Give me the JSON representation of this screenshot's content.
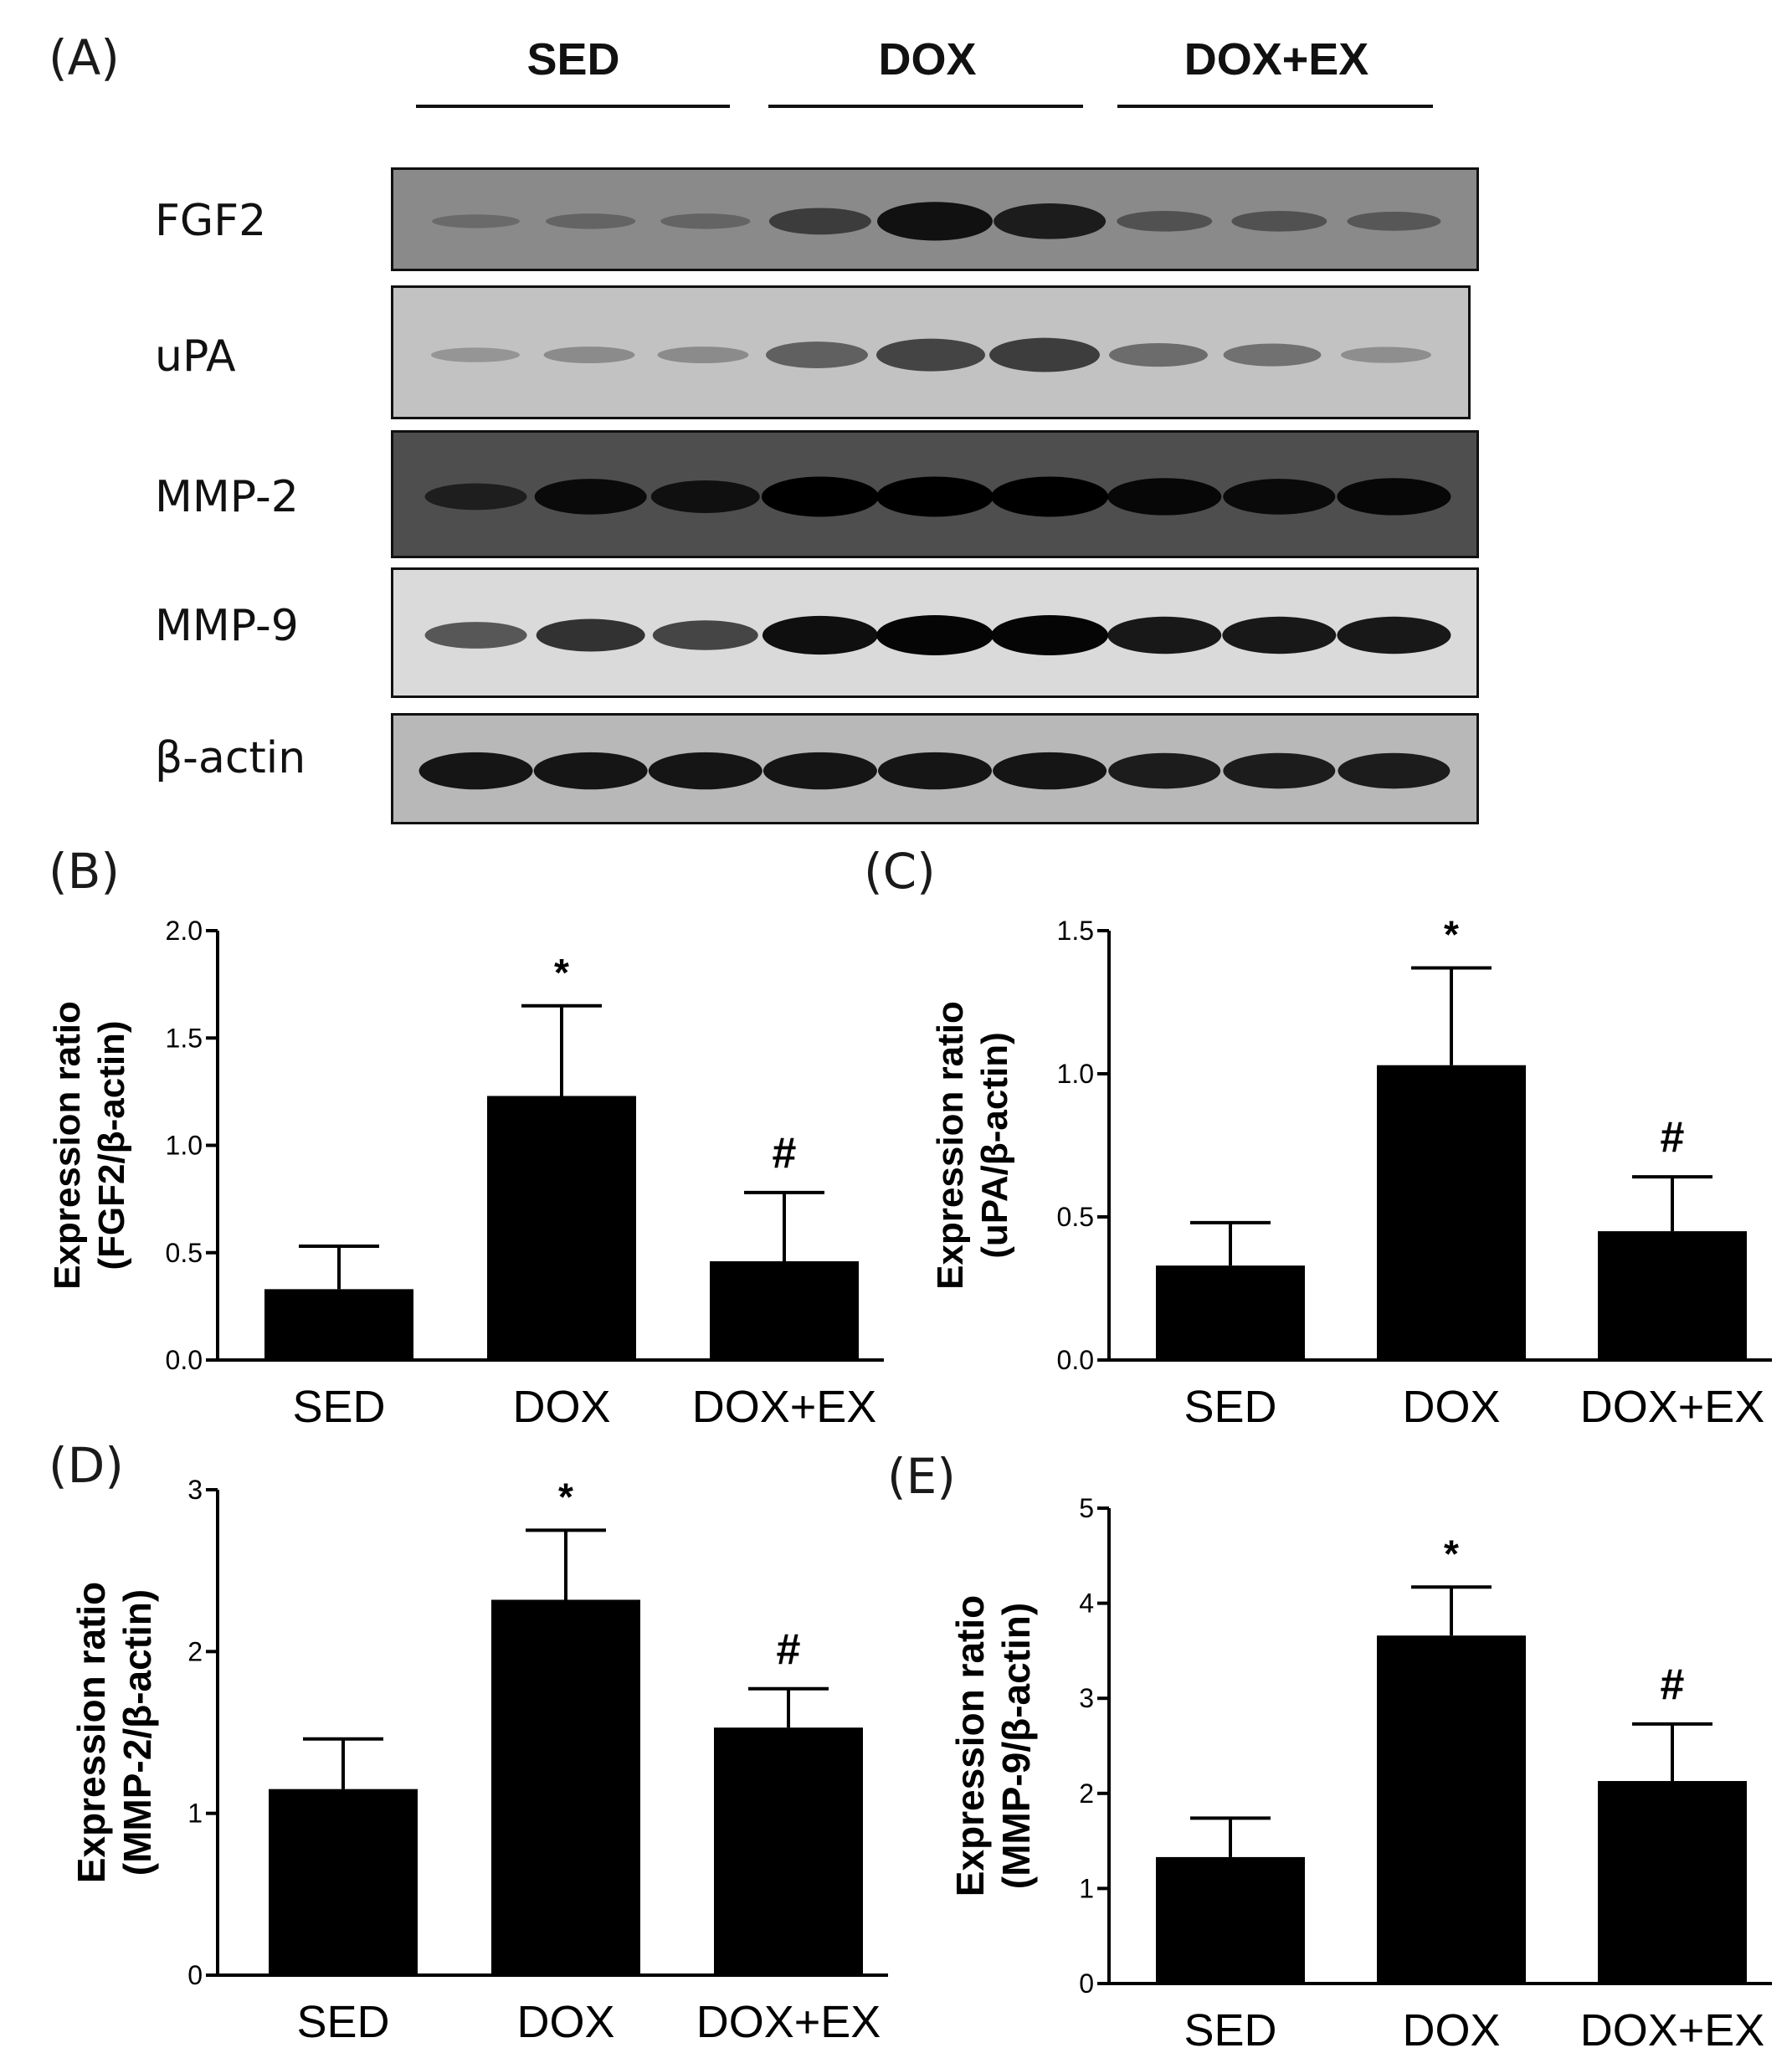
{
  "panel_a": {
    "letter": "(A)",
    "groups": [
      "SED",
      "DOX",
      "DOX+EX"
    ],
    "blots": [
      {
        "label": "FGF2",
        "bg": "#8a8a8a",
        "band_color": "#0c0c0c",
        "intensity": [
          0.12,
          0.18,
          0.18,
          0.55,
          0.95,
          0.85,
          0.35,
          0.35,
          0.3
        ]
      },
      {
        "label": "uPA",
        "bg": "#c2c2c2",
        "band_color": "#222222",
        "intensity": [
          0.15,
          0.22,
          0.22,
          0.55,
          0.75,
          0.8,
          0.45,
          0.42,
          0.2
        ]
      },
      {
        "label": "MMP-2",
        "bg": "#4e4e4e",
        "band_color": "#000000",
        "intensity": [
          0.55,
          0.85,
          0.75,
          1.0,
          1.0,
          1.0,
          0.9,
          0.85,
          0.9
        ]
      },
      {
        "label": "MMP-9",
        "bg": "#dadada",
        "band_color": "#050505",
        "intensity": [
          0.55,
          0.75,
          0.65,
          0.95,
          1.0,
          1.0,
          0.9,
          0.9,
          0.9
        ]
      },
      {
        "label": "β-actin",
        "bg": "#b8b8b8",
        "band_color": "#050505",
        "intensity": [
          0.9,
          0.9,
          0.9,
          0.9,
          0.9,
          0.9,
          0.85,
          0.85,
          0.85
        ]
      }
    ]
  },
  "chart_data": [
    {
      "panel": "(B)",
      "type": "bar",
      "categories": [
        "SED",
        "DOX",
        "DOX+EX"
      ],
      "values": [
        0.33,
        1.23,
        0.46
      ],
      "errors": [
        0.2,
        0.42,
        0.32
      ],
      "annotations": [
        "",
        "*",
        "#"
      ],
      "ylabel_line1": "Expression ratio",
      "ylabel_line2": "(FGF2/β-actin)",
      "ylim": [
        0,
        2.0
      ],
      "yticks": [
        "0.0",
        "0.5",
        "1.0",
        "1.5",
        "2.0"
      ]
    },
    {
      "panel": "(C)",
      "type": "bar",
      "categories": [
        "SED",
        "DOX",
        "DOX+EX"
      ],
      "values": [
        0.33,
        1.03,
        0.45
      ],
      "errors": [
        0.15,
        0.34,
        0.19
      ],
      "annotations": [
        "",
        "*",
        "#"
      ],
      "ylabel_line1": "Expression ratio",
      "ylabel_line2": "(uPA/β-actin)",
      "ylim": [
        0,
        1.5
      ],
      "yticks": [
        "0.0",
        "0.5",
        "1.0",
        "1.5"
      ]
    },
    {
      "panel": "(D)",
      "type": "bar",
      "categories": [
        "SED",
        "DOX",
        "DOX+EX"
      ],
      "values": [
        1.15,
        2.32,
        1.53
      ],
      "errors": [
        0.31,
        0.43,
        0.24
      ],
      "annotations": [
        "",
        "*",
        "#"
      ],
      "ylabel_line1": "Expression ratio",
      "ylabel_line2": "(MMP-2/β-actin)",
      "ylim": [
        0,
        3
      ],
      "yticks": [
        "0",
        "1",
        "2",
        "3"
      ]
    },
    {
      "panel": "(E)",
      "type": "bar",
      "categories": [
        "SED",
        "DOX",
        "DOX+EX"
      ],
      "values": [
        1.33,
        3.66,
        2.13
      ],
      "errors": [
        0.41,
        0.51,
        0.6
      ],
      "annotations": [
        "",
        "*",
        "#"
      ],
      "ylabel_line1": "Expression ratio",
      "ylabel_line2": "(MMP-9/β-actin)",
      "ylim": [
        0,
        5
      ],
      "yticks": [
        "0",
        "1",
        "2",
        "3",
        "4",
        "5"
      ]
    }
  ]
}
